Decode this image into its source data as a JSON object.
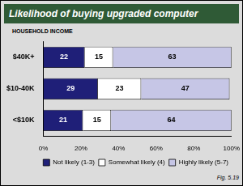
{
  "chart_data": {
    "type": "bar",
    "title": "Likelihood of buying upgraded computer",
    "y_label": "HOUSEHOLD INCOME",
    "annotation": "Fig. 5.19",
    "orientation": "horizontal",
    "stacked": true,
    "data_labels": true,
    "grid": false,
    "legend": "bottom",
    "categories": [
      "$40K+",
      "$10-40K",
      "<$10K"
    ],
    "series": [
      {
        "name": "Not likely (1-3)",
        "color": "#1f1f78",
        "values": [
          22,
          29,
          21
        ]
      },
      {
        "name": "Somewhat likely (4)",
        "color": "#ffffff",
        "values": [
          15,
          23,
          15
        ]
      },
      {
        "name": "Highly likely (5-7)",
        "color": "#c6c6e6",
        "values": [
          63,
          47,
          64
        ]
      }
    ],
    "xlim": [
      0,
      100
    ],
    "xticks": [
      {
        "value": 0,
        "label": "0%"
      },
      {
        "value": 20,
        "label": "20%"
      },
      {
        "value": 40,
        "label": "40%"
      },
      {
        "value": 60,
        "label": "60%"
      },
      {
        "value": 80,
        "label": "80%"
      },
      {
        "value": 100,
        "label": "100%"
      }
    ]
  }
}
